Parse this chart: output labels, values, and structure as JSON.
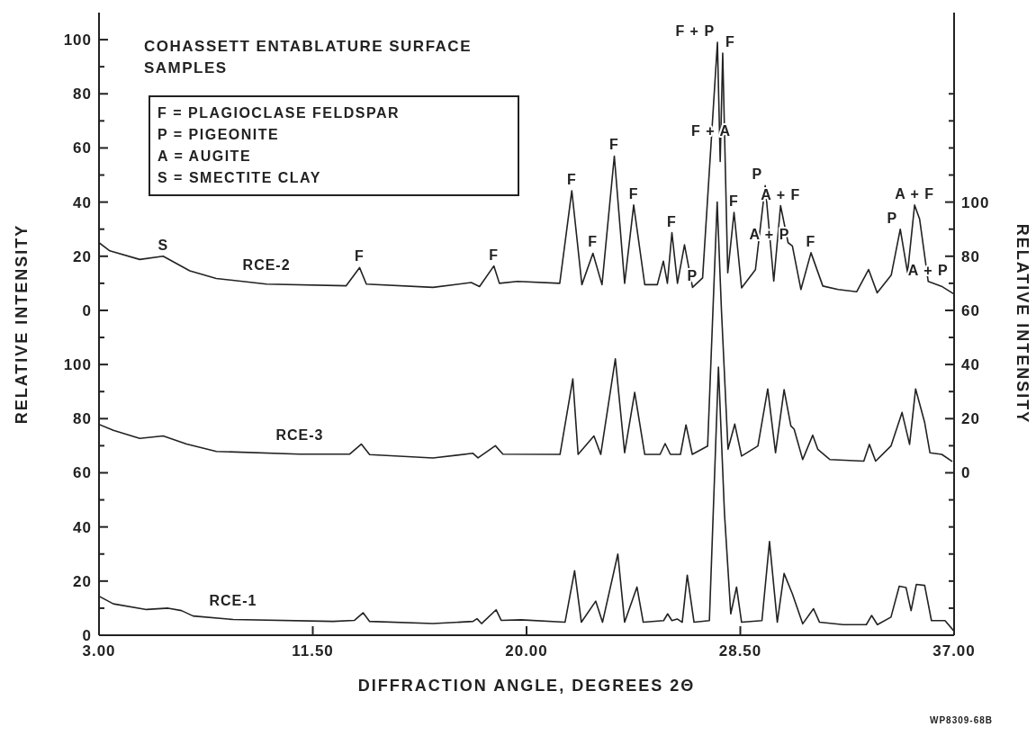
{
  "chart_data": [
    {
      "type": "line",
      "title": "COHASSETT ENTABLATURE SURFACE SAMPLES",
      "tick_labels": "y",
      "xlim": [
        3,
        37
      ],
      "ylim": [
        -120,
        110
      ],
      "yticks": [
        {
          "value": -10,
          "label": null
        },
        0,
        {
          "value": 10,
          "label": null
        },
        20,
        {
          "value": 30,
          "label": null
        },
        40,
        {
          "value": 50,
          "label": null
        },
        60,
        {
          "value": 70,
          "label": null
        },
        80,
        {
          "value": 90,
          "label": null
        },
        100
      ],
      "series": [
        {
          "name": "RCE-2",
          "color": "#222222",
          "x": [
            3,
            3.43,
            4.62,
            5.55,
            6.61,
            7.66,
            9.66,
            12.83,
            13.36,
            13.63,
            16.28,
            17.8,
            18.13,
            18.7,
            18.92,
            19.64,
            21.32,
            21.8,
            22.2,
            22.64,
            23,
            23.49,
            23.9,
            24.26,
            24.7,
            25.2,
            25.44,
            25.6,
            25.78,
            26,
            26.28,
            26.6,
            27,
            27.34,
            27.59,
            27.7,
            27.8,
            28,
            28.25,
            28.55,
            29.1,
            29.49,
            29.83,
            30.1,
            30.4,
            30.57,
            30.91,
            31.31,
            31.78,
            32.39,
            33.13,
            33.6,
            33.94,
            34.5,
            34.86,
            35.15,
            35.43,
            35.63,
            35.97,
            36.5,
            37
          ],
          "values": [
            25,
            22,
            18.8,
            20,
            14.6,
            11.8,
            9.7,
            9.1,
            15.8,
            9.7,
            8.5,
            10.3,
            8.8,
            16.4,
            10,
            10.7,
            10,
            44.2,
            9.5,
            21.1,
            9.5,
            57,
            10,
            38.9,
            9.5,
            9.5,
            18.2,
            10,
            28.7,
            10,
            24.2,
            8.5,
            12,
            62,
            99,
            55,
            95,
            13.9,
            36.2,
            8.3,
            15,
            46.1,
            10.8,
            38.7,
            25,
            23.8,
            7.7,
            21.3,
            9,
            7.7,
            6.9,
            15.1,
            6.5,
            13,
            30,
            13.9,
            38.9,
            33.7,
            10.7,
            8.9,
            6
          ]
        }
      ],
      "annotations": [
        "F = PLAGIOCLASE FELDSPAR",
        "P = PIGEONITE",
        "A = AUGITE",
        "S = SMECTITE CLAY",
        {
          "text": "S",
          "x": 5.55,
          "y": 20
        },
        {
          "text": "F",
          "x": 13.36,
          "y": 15.8
        },
        {
          "text": "F",
          "x": 18.7,
          "y": 16.4
        },
        {
          "text": "F",
          "x": 21.8,
          "y": 44.2
        },
        {
          "text": "F",
          "x": 22.64,
          "y": 21.1
        },
        {
          "text": "F",
          "x": 23.49,
          "y": 57
        },
        {
          "text": "F",
          "x": 24.26,
          "y": 38.9
        },
        {
          "text": "F",
          "x": 25.78,
          "y": 28.7
        },
        {
          "text": "P",
          "x": 26.6,
          "y": 8.5
        },
        {
          "text": "F + A",
          "x": 27.34,
          "y": 62
        },
        {
          "text": "F + P",
          "x": 27.59,
          "y": 99
        },
        {
          "text": "F",
          "x": 27.8,
          "y": 95
        },
        {
          "text": "F",
          "x": 28.25,
          "y": 36.2
        },
        {
          "text": "P",
          "x": 29.49,
          "y": 46.1
        },
        {
          "text": "A + F",
          "x": 30.1,
          "y": 38.7
        },
        {
          "text": "A + P",
          "x": 30.57,
          "y": 23.8
        },
        {
          "text": "F",
          "x": 31.31,
          "y": 21.3
        },
        {
          "text": "P",
          "x": 34.86,
          "y": 30
        },
        {
          "text": "A + F",
          "x": 35.43,
          "y": 38.9
        },
        {
          "text": "A + P",
          "x": 35.97,
          "y": 10.7
        }
      ]
    },
    {
      "type": "line",
      "xlabel": "DIFFRACTION ANGLE, DEGREES 2Θ",
      "ylabel": "RELATIVE INTENSITY",
      "y2label": "RELATIVE INTENSITY",
      "xlim": [
        3,
        37
      ],
      "xticks": [
        {
          "value": 3,
          "label": "3.00"
        },
        {
          "value": 11.5,
          "label": "11.50"
        },
        {
          "value": 20,
          "label": "20.00"
        },
        {
          "value": 28.5,
          "label": "28.50"
        },
        {
          "value": 37,
          "label": "37.00"
        }
      ],
      "ylim": [
        0,
        230
      ],
      "yticks": [
        0,
        {
          "value": 10,
          "label": null
        },
        20,
        {
          "value": 30,
          "label": null
        },
        40,
        {
          "value": 50,
          "label": null
        },
        60,
        {
          "value": 70,
          "label": null
        },
        80,
        {
          "value": 90,
          "label": null
        },
        100
      ],
      "y2lim": [
        -60,
        170
      ],
      "y2ticks": [
        {
          "value": -50,
          "label": null
        },
        {
          "value": -40,
          "label": null
        },
        {
          "value": -30,
          "label": null
        },
        {
          "value": -20,
          "label": null
        },
        {
          "value": -10,
          "label": null
        },
        0,
        {
          "value": 10,
          "label": null
        },
        20,
        {
          "value": 30,
          "label": null
        },
        40,
        {
          "value": 50,
          "label": null
        },
        60,
        {
          "value": 70,
          "label": null
        },
        80,
        {
          "value": 90,
          "label": null
        },
        100,
        {
          "value": 110,
          "label": null
        },
        {
          "value": 120,
          "label": null
        },
        {
          "value": 130,
          "label": null
        },
        {
          "value": 140,
          "label": null
        }
      ],
      "series": [
        {
          "name": "RCE-3",
          "color": "#222222",
          "axis": "y2",
          "x": [
            3,
            3.57,
            4.62,
            5.55,
            6.48,
            7.67,
            10.98,
            12.97,
            13.43,
            13.76,
            16.28,
            17.87,
            18.07,
            18.76,
            19.06,
            21.33,
            21.84,
            22.05,
            22.68,
            22.95,
            23.53,
            23.9,
            24.3,
            24.7,
            25.31,
            25.51,
            25.72,
            26.12,
            26.34,
            26.59,
            27.2,
            27.58,
            27.75,
            28.01,
            28.28,
            28.55,
            29.2,
            29.59,
            29.9,
            30.24,
            30.51,
            30.64,
            30.98,
            31.38,
            31.58,
            32.06,
            33.41,
            33.63,
            33.88,
            34.49,
            34.93,
            35.23,
            35.47,
            35.83,
            36.04,
            36.51,
            36.91
          ],
          "values": [
            17.9,
            15.7,
            12.7,
            13.6,
            10.6,
            7.9,
            6.9,
            6.9,
            10.6,
            6.7,
            5.5,
            7.2,
            5.5,
            10,
            6.9,
            6.8,
            34.7,
            6.8,
            13.6,
            6.8,
            42.1,
            7.4,
            29.7,
            6.8,
            6.8,
            10.8,
            6.8,
            6.8,
            17.7,
            6.8,
            9.9,
            100,
            60,
            8.7,
            18,
            6.2,
            9.9,
            31,
            7.4,
            30.7,
            17.3,
            16.1,
            4.9,
            13.9,
            8.7,
            4.9,
            4.3,
            10.5,
            4.3,
            9.9,
            22.3,
            10.5,
            31,
            18.6,
            7.4,
            6.8,
            4.3
          ]
        },
        {
          "name": "RCE-1",
          "color": "#222222",
          "x": [
            3,
            3.57,
            4.89,
            5.75,
            6.28,
            6.74,
            8.33,
            12.31,
            13.16,
            13.5,
            13.76,
            16.28,
            17.87,
            18.03,
            18.21,
            18.79,
            18.99,
            19.78,
            21.53,
            21.91,
            22.18,
            22.75,
            23.02,
            23.63,
            23.9,
            24.39,
            24.64,
            25.45,
            25.61,
            25.78,
            25.99,
            26.19,
            26.39,
            26.66,
            27.27,
            27.63,
            27.87,
            28.12,
            28.35,
            28.55,
            29.36,
            29.66,
            29.97,
            30.24,
            30.57,
            30.98,
            31.41,
            31.65,
            32.6,
            33.51,
            33.72,
            33.95,
            34.49,
            34.82,
            35.09,
            35.29,
            35.5,
            35.83,
            36.1,
            36.64,
            36.98
          ],
          "values": [
            14.4,
            11.6,
            9.5,
            10,
            9.1,
            7.1,
            5.8,
            5.1,
            5.5,
            8.3,
            5.1,
            4.3,
            5.1,
            6.1,
            4.3,
            9.4,
            5.5,
            5.7,
            4.8,
            23.8,
            4.8,
            12.6,
            4.8,
            30,
            4.8,
            17.8,
            4.8,
            5.4,
            7.9,
            5.4,
            6,
            4.8,
            22.2,
            4.8,
            5.4,
            99,
            45,
            7.9,
            17.8,
            4.8,
            5.4,
            34.6,
            4.8,
            22.8,
            15.3,
            4.2,
            9.8,
            4.8,
            3.9,
            3.9,
            7.3,
            3.9,
            6.7,
            18.1,
            17.6,
            9.1,
            18.8,
            18.4,
            5.4,
            5.4,
            1.7
          ]
        }
      ],
      "annotations": [
        "WP8309-68B"
      ]
    }
  ]
}
